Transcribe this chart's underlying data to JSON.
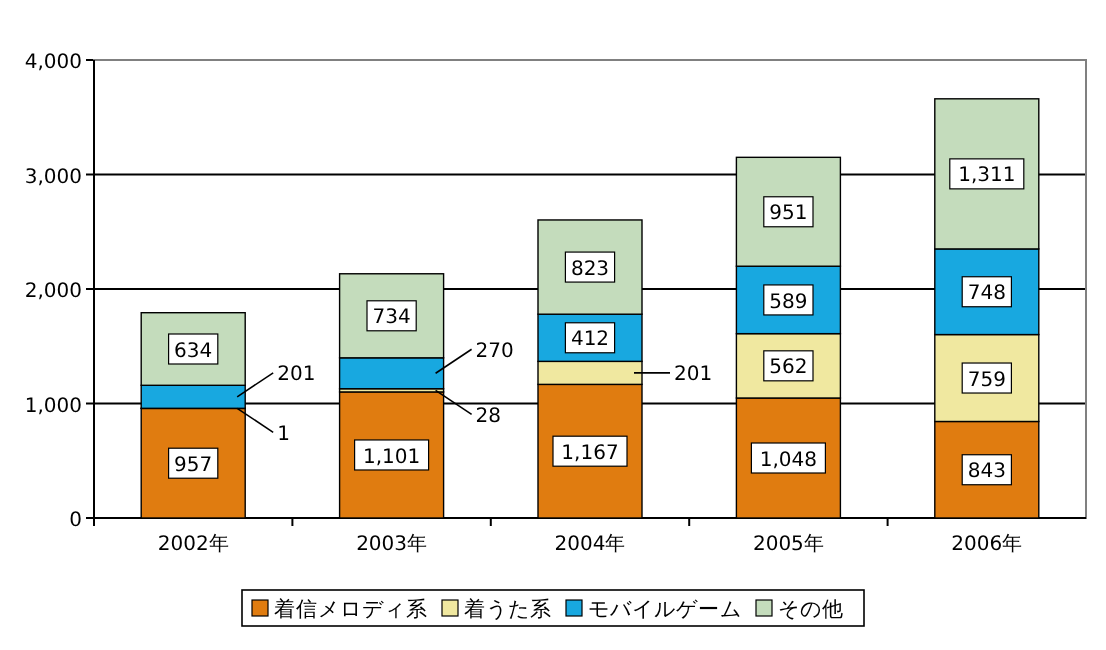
{
  "chart_data": {
    "type": "bar",
    "stacked": true,
    "categories": [
      "2002年",
      "2003年",
      "2004年",
      "2005年",
      "2006年"
    ],
    "series": [
      {
        "name": "着信メロディ系",
        "color": "#e07c10",
        "values": [
          957,
          1101,
          1167,
          1048,
          843
        ],
        "value_labels": [
          "957",
          "1,101",
          "1,167",
          "1,048",
          "843"
        ]
      },
      {
        "name": "着うた系",
        "color": "#f0e8a0",
        "values": [
          1,
          28,
          201,
          562,
          759
        ],
        "value_labels": [
          "1",
          "28",
          "201",
          "562",
          "759"
        ]
      },
      {
        "name": "モバイルゲーム",
        "color": "#18a8e0",
        "values": [
          201,
          270,
          412,
          589,
          748
        ],
        "value_labels": [
          "201",
          "270",
          "412",
          "589",
          "748"
        ]
      },
      {
        "name": "その他",
        "color": "#c4dcbc",
        "values": [
          634,
          734,
          823,
          951,
          1311
        ],
        "value_labels": [
          "634",
          "734",
          "823",
          "951",
          "1,311"
        ]
      }
    ],
    "ylim": [
      0,
      4000
    ],
    "yticks": [
      {
        "value": 0,
        "label": "0"
      },
      {
        "value": 1000,
        "label": "1,000"
      },
      {
        "value": 2000,
        "label": "2,000"
      },
      {
        "value": 3000,
        "label": "3,000"
      },
      {
        "value": 4000,
        "label": "4,000"
      }
    ],
    "grid": "y",
    "legend": "bottom"
  }
}
